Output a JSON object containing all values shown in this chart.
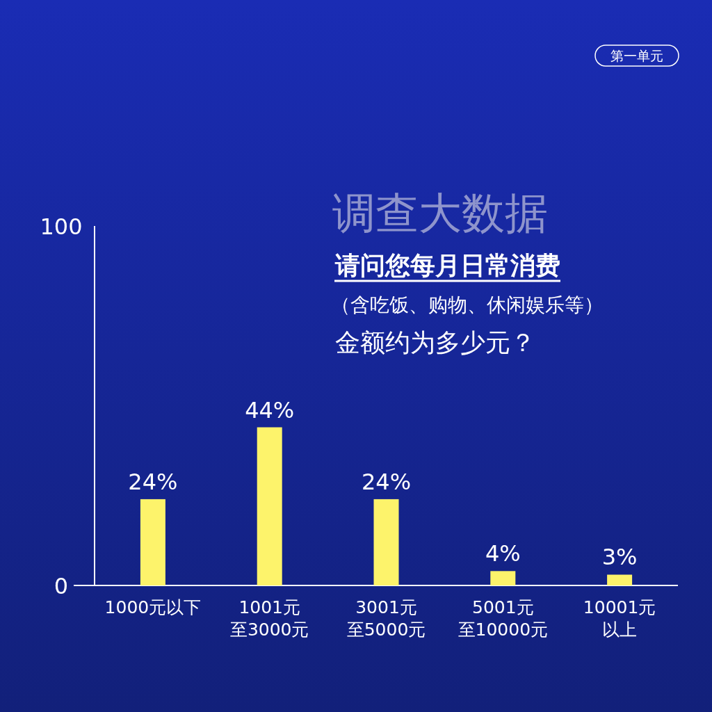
{
  "chart_data": {
    "type": "bar",
    "title": "调查大数据",
    "subtitle": "请问您每月日常消费",
    "annotations": [
      "（含吃饭、购物、休闲娱乐等）",
      "金额约为多少元？",
      "第一单元"
    ],
    "categories": [
      "1000元以下",
      "1001元至3000元",
      "3001元至5000元",
      "5001元至10000元",
      "10001元以上"
    ],
    "values": [
      24,
      44,
      24,
      4,
      3
    ],
    "value_labels": [
      "24%",
      "44%",
      "24%",
      "4%",
      "3%"
    ],
    "color": "#fdf36b",
    "ylim": [
      0,
      100
    ],
    "yticks": [
      0,
      100
    ],
    "grid": false,
    "legend": false
  }
}
